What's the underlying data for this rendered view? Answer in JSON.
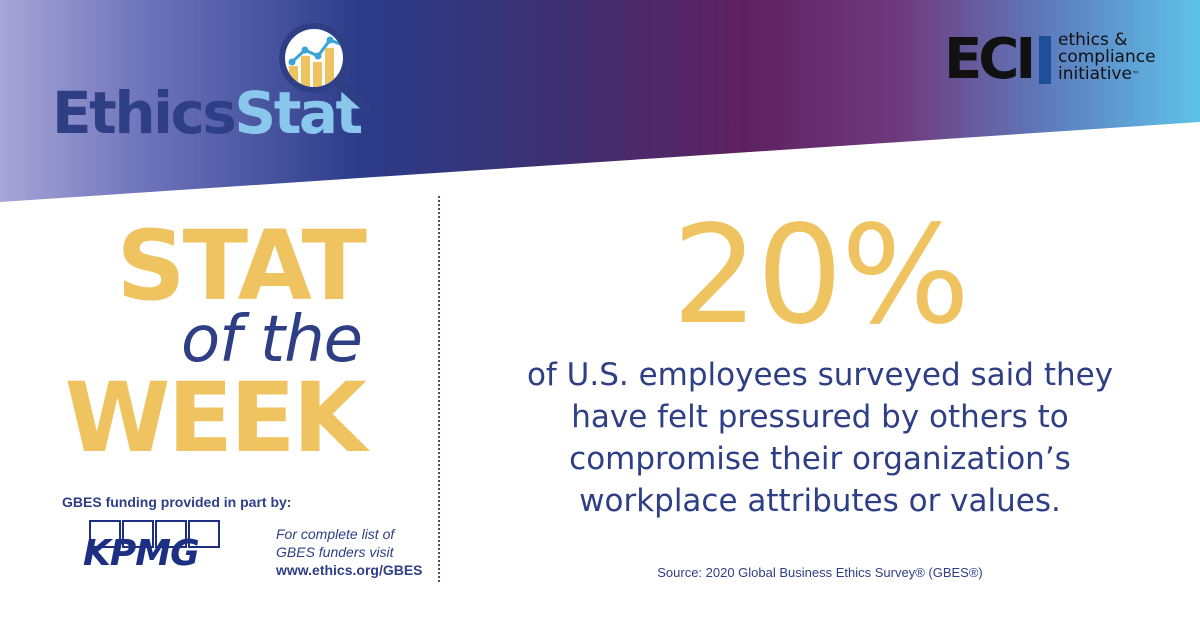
{
  "header": {
    "brand_part1": "Ethics",
    "brand_part2": "Stat",
    "brand_icon": "magnifying-glass-chart-icon",
    "partner_mark": "ECI",
    "partner_line1": "ethics &",
    "partner_line2": "compliance",
    "partner_line3": "initiative",
    "partner_tm": "™"
  },
  "headline": {
    "word1": "STAT",
    "word2": "of the",
    "word3": "WEEK"
  },
  "funding": {
    "label": "GBES funding provided in part by:",
    "sponsor": "KPMG",
    "note_line1": "For complete list of",
    "note_line2": "GBES funders visit",
    "url": "www.ethics.org/GBES"
  },
  "stat": {
    "value": "20%",
    "line1": "of U.S. employees surveyed said they",
    "line2": "have felt pressured by others to",
    "line3": "compromise their organization’s",
    "line4": "workplace attributes or values.",
    "source": "Source: 2020 Global Business Ethics Survey® (GBES®)"
  },
  "colors": {
    "navy": "#2e3f86",
    "light_blue": "#89c8ec",
    "gold": "#efc35f",
    "purple": "#5e2160",
    "sky": "#5ec2e8",
    "kpmg_blue": "#1d2f82"
  }
}
